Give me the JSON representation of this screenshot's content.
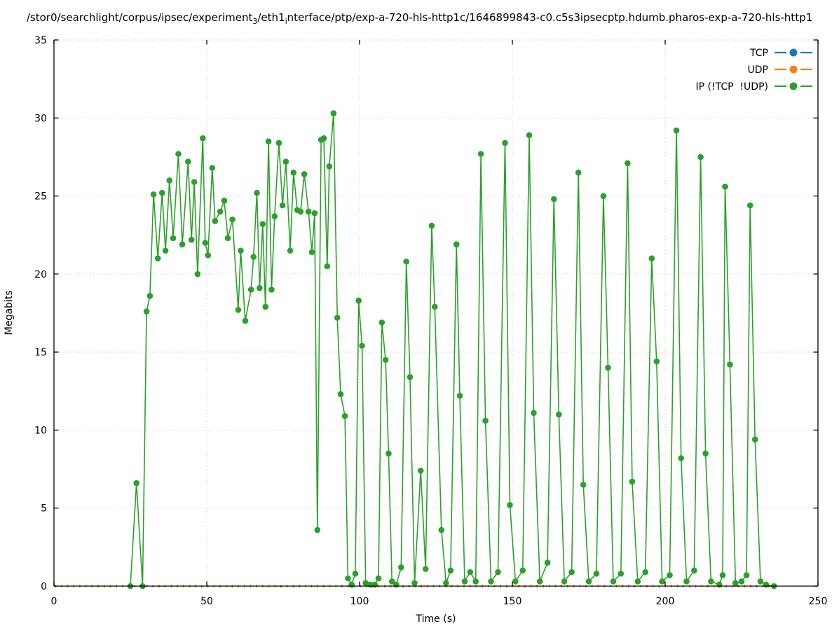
{
  "title": {
    "p1": "/stor0/searchlight/corpus/ipsec/experiment",
    "s1": "3",
    "p2": "/eth1",
    "s2": "i",
    "p3": "nterface/ptp/exp-a-720-hls-http1c/1646899843-c0.c5s3ipsecptp.hdumb.pharos-exp-a-720-hls-http1"
  },
  "chart_data": {
    "type": "line",
    "xlabel": "Time (s)",
    "ylabel": "Megabits",
    "xlim": [
      0,
      250
    ],
    "ylim": [
      0,
      35
    ],
    "xticks": [
      0,
      50,
      100,
      150,
      200,
      250
    ],
    "yticks": [
      0,
      5,
      10,
      15,
      20,
      25,
      30,
      35
    ],
    "grid": true,
    "grid_style": "dotted",
    "legend_position": "top-right",
    "colors": {
      "grid": "#c8c8c8",
      "axis": "#000000"
    },
    "series": [
      {
        "name": "TCP",
        "color": "#1f77b4",
        "style": "baseline-dash",
        "points": [
          [
            0.3,
            0
          ],
          [
            236,
            0
          ]
        ]
      },
      {
        "name": "UDP",
        "color": "#ff7f0e",
        "style": "baseline-dash",
        "points": [
          [
            0.3,
            0
          ],
          [
            236,
            0
          ]
        ]
      },
      {
        "name": "IP (!TCP  !UDP)",
        "color": "#2ca02c",
        "style": "line-markers",
        "points": [
          [
            25,
            0
          ],
          [
            27,
            6.6
          ],
          [
            29,
            0
          ],
          [
            30.3,
            17.6
          ],
          [
            31.4,
            18.6
          ],
          [
            32.6,
            25.1
          ],
          [
            34,
            21.0
          ],
          [
            35.4,
            25.2
          ],
          [
            36.5,
            21.5
          ],
          [
            37.8,
            26.0
          ],
          [
            39,
            22.3
          ],
          [
            40.7,
            27.7
          ],
          [
            42,
            21.9
          ],
          [
            43.9,
            27.2
          ],
          [
            45,
            22.2
          ],
          [
            45.9,
            25.9
          ],
          [
            47,
            20.0
          ],
          [
            48.7,
            28.7
          ],
          [
            49.5,
            22.0
          ],
          [
            50.4,
            21.2
          ],
          [
            51.8,
            26.8
          ],
          [
            52.7,
            23.4
          ],
          [
            54.4,
            24.0
          ],
          [
            55.7,
            24.7
          ],
          [
            56.9,
            22.3
          ],
          [
            58.4,
            23.5
          ],
          [
            60.3,
            17.7
          ],
          [
            61.1,
            21.5
          ],
          [
            62.6,
            17.0
          ],
          [
            64.5,
            19.0
          ],
          [
            65.3,
            21.1
          ],
          [
            66.4,
            25.2
          ],
          [
            67.3,
            19.1
          ],
          [
            68.3,
            23.2
          ],
          [
            69.2,
            17.9
          ],
          [
            70.2,
            28.5
          ],
          [
            71.2,
            19.0
          ],
          [
            72.2,
            23.7
          ],
          [
            73.6,
            28.4
          ],
          [
            74.8,
            24.4
          ],
          [
            75.9,
            27.2
          ],
          [
            77.3,
            21.5
          ],
          [
            78.4,
            26.5
          ],
          [
            79.6,
            24.1
          ],
          [
            80.7,
            24.0
          ],
          [
            81.9,
            26.4
          ],
          [
            83.3,
            24.0
          ],
          [
            84.4,
            21.4
          ],
          [
            85.3,
            23.9
          ],
          [
            86.2,
            3.6
          ],
          [
            87.4,
            28.6
          ],
          [
            88.3,
            28.7
          ],
          [
            89.4,
            20.5
          ],
          [
            90.1,
            26.9
          ],
          [
            91.5,
            30.3
          ],
          [
            92.7,
            17.2
          ],
          [
            93.8,
            12.3
          ],
          [
            95.2,
            10.9
          ],
          [
            96.2,
            0.5
          ],
          [
            97.4,
            0.1
          ],
          [
            98.6,
            0.8
          ],
          [
            99.7,
            18.3
          ],
          [
            100.8,
            15.4
          ],
          [
            102,
            0.2
          ],
          [
            103.5,
            0.1
          ],
          [
            105,
            0.1
          ],
          [
            106.2,
            0.5
          ],
          [
            107.3,
            16.9
          ],
          [
            108.5,
            14.5
          ],
          [
            109.5,
            8.5
          ],
          [
            110.6,
            0.3
          ],
          [
            112,
            0.1
          ],
          [
            113.6,
            1.2
          ],
          [
            115.3,
            20.8
          ],
          [
            116.5,
            13.4
          ],
          [
            118,
            0.2
          ],
          [
            120,
            7.4
          ],
          [
            121.6,
            1.1
          ],
          [
            123.6,
            23.1
          ],
          [
            124.6,
            17.9
          ],
          [
            126.8,
            3.6
          ],
          [
            128.3,
            0.2
          ],
          [
            129.8,
            1.0
          ],
          [
            131.7,
            21.9
          ],
          [
            132.8,
            12.2
          ],
          [
            134.4,
            0.3
          ],
          [
            136.2,
            0.9
          ],
          [
            138,
            0.3
          ],
          [
            139.7,
            27.7
          ],
          [
            141.2,
            10.6
          ],
          [
            143,
            0.3
          ],
          [
            145.3,
            0.9
          ],
          [
            147.6,
            28.4
          ],
          [
            149.2,
            5.2
          ],
          [
            151,
            0.3
          ],
          [
            153.4,
            1.0
          ],
          [
            155.5,
            28.9
          ],
          [
            157,
            11.1
          ],
          [
            159,
            0.3
          ],
          [
            161.5,
            1.5
          ],
          [
            163.6,
            24.8
          ],
          [
            165.2,
            11.0
          ],
          [
            167,
            0.3
          ],
          [
            169.4,
            0.9
          ],
          [
            171.6,
            26.5
          ],
          [
            173.2,
            6.5
          ],
          [
            175,
            0.3
          ],
          [
            177.5,
            0.8
          ],
          [
            179.8,
            25.0
          ],
          [
            181.3,
            14.0
          ],
          [
            183,
            0.3
          ],
          [
            185.5,
            0.8
          ],
          [
            187.7,
            27.1
          ],
          [
            189.2,
            6.7
          ],
          [
            191,
            0.3
          ],
          [
            193.5,
            0.9
          ],
          [
            195.6,
            21.0
          ],
          [
            197.2,
            14.4
          ],
          [
            199,
            0.3
          ],
          [
            201.5,
            0.7
          ],
          [
            203.7,
            29.2
          ],
          [
            205.2,
            8.2
          ],
          [
            207,
            0.3
          ],
          [
            209.5,
            1.0
          ],
          [
            211.6,
            27.5
          ],
          [
            213.2,
            8.5
          ],
          [
            215,
            0.3
          ],
          [
            217.7,
            0.1
          ],
          [
            218.8,
            0.7
          ],
          [
            219.6,
            25.6
          ],
          [
            221.2,
            14.2
          ],
          [
            223,
            0.2
          ],
          [
            225,
            0.3
          ],
          [
            226.6,
            0.7
          ],
          [
            227.8,
            24.4
          ],
          [
            229.4,
            9.4
          ],
          [
            231.2,
            0.3
          ],
          [
            233,
            0.1
          ],
          [
            235.6,
            0
          ]
        ]
      }
    ]
  }
}
